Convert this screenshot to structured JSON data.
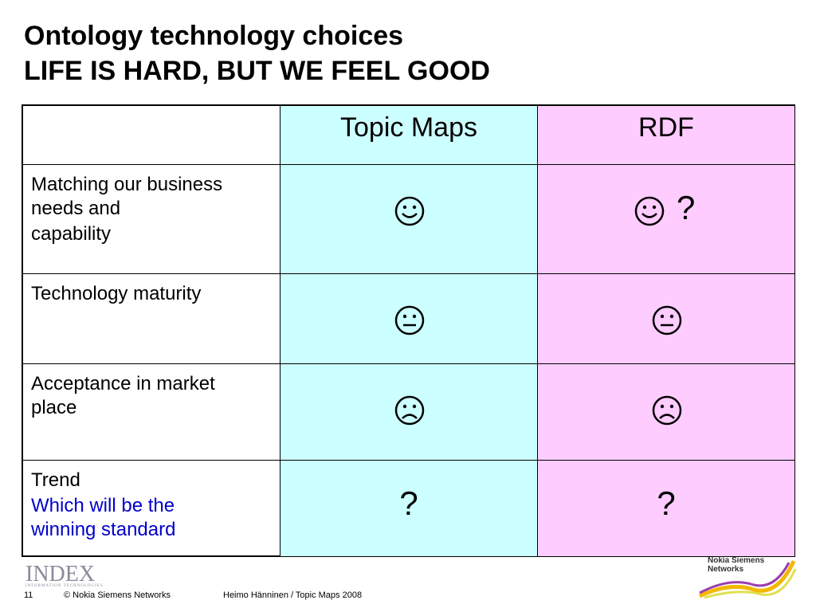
{
  "header": {
    "title": "Ontology technology choices",
    "subtitle": "LIFE IS HARD, BUT WE FEEL GOOD"
  },
  "table": {
    "columns": [
      "Topic Maps",
      "RDF"
    ],
    "rows": [
      {
        "label": [
          "Matching our business needs and",
          "capability"
        ],
        "cells": [
          "",
          "?"
        ]
      },
      {
        "label": [
          "Technology maturity"
        ],
        "cells": [
          "",
          ""
        ]
      },
      {
        "label": [
          "Acceptance in market place"
        ],
        "cells": [
          "",
          ""
        ]
      },
      {
        "label": [
          "Trend",
          "Which will be the winning standard"
        ],
        "cells": [
          "?",
          "?"
        ]
      }
    ]
  },
  "footer": {
    "logo": "INDEX",
    "logo_tagline": "INFORMATION TECHNOLOGIES",
    "page": "11",
    "copyright": "© Nokia Siemens Networks",
    "author": "Heimo Hänninen / Topic Maps 2008",
    "brand": "Nokia Siemens Networks"
  }
}
